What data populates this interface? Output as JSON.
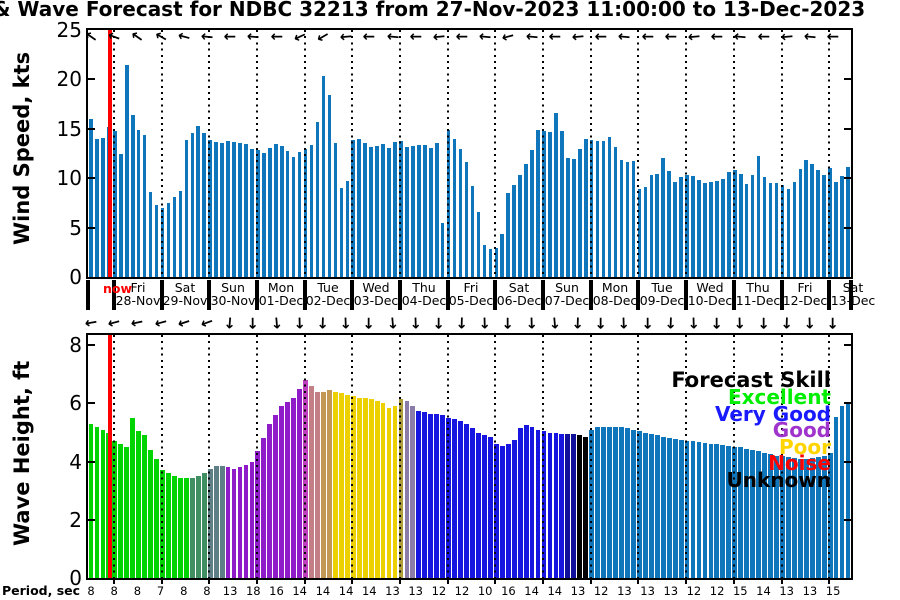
{
  "title": "& Wave Forecast for NDBC 32213 from 27-Nov-2023 11:00:00 to 13-Dec-2023",
  "now_label": "now",
  "colors": {
    "now_line": "#ff0000",
    "wind_bar": "#0f76bc",
    "axis": "#000000"
  },
  "days": [
    {
      "dow": "Fri",
      "date": "28-Nov"
    },
    {
      "dow": "Sat",
      "date": "29-Nov"
    },
    {
      "dow": "Sun",
      "date": "30-Nov"
    },
    {
      "dow": "Mon",
      "date": "01-Dec"
    },
    {
      "dow": "Tue",
      "date": "02-Dec"
    },
    {
      "dow": "Wed",
      "date": "03-Dec"
    },
    {
      "dow": "Thu",
      "date": "04-Dec"
    },
    {
      "dow": "Fri",
      "date": "05-Dec"
    },
    {
      "dow": "Sat",
      "date": "06-Dec"
    },
    {
      "dow": "Sun",
      "date": "07-Dec"
    },
    {
      "dow": "Mon",
      "date": "08-Dec"
    },
    {
      "dow": "Tue",
      "date": "09-Dec"
    },
    {
      "dow": "Wed",
      "date": "10-Dec"
    },
    {
      "dow": "Thu",
      "date": "11-Dec"
    },
    {
      "dow": "Fri",
      "date": "12-Dec"
    },
    {
      "dow": "Sat",
      "date": "13-Dec"
    }
  ],
  "period": {
    "label": "Period, sec",
    "values": [
      "8",
      "8",
      "8",
      "7",
      "8",
      "8",
      "13",
      "18",
      "16",
      "14",
      "14",
      "14",
      "14",
      "13",
      "13",
      "12",
      "12",
      "10",
      "16",
      "14",
      "14",
      "13",
      "12",
      "13",
      "13",
      "13",
      "12",
      "12",
      "15",
      "14",
      "13",
      "13",
      "15"
    ]
  },
  "chart_data": [
    {
      "type": "bar",
      "id": "wind",
      "ylabel": "Wind Speed, kts",
      "ylim": [
        0,
        25
      ],
      "yticks": [
        0,
        5,
        10,
        15,
        20,
        25
      ],
      "bar_color": "#0f76bc",
      "x_range": "27-Nov-2023 to 13-Dec-2023, 3-hourly",
      "values": [
        16.0,
        14.0,
        14.1,
        15.2,
        14.8,
        12.5,
        21.5,
        16.4,
        14.9,
        14.4,
        8.6,
        7.3,
        7.0,
        7.5,
        8.1,
        8.7,
        13.9,
        14.6,
        15.3,
        14.6,
        13.9,
        13.7,
        13.6,
        13.8,
        13.7,
        13.6,
        13.5,
        13.0,
        12.9,
        12.6,
        13.1,
        13.5,
        13.3,
        12.8,
        12.2,
        12.7,
        13.0,
        13.4,
        15.7,
        20.3,
        18.4,
        13.6,
        9.0,
        9.7,
        13.9,
        14.0,
        13.6,
        13.2,
        13.3,
        13.5,
        13.1,
        13.7,
        13.8,
        13.2,
        13.3,
        13.4,
        13.4,
        13.1,
        13.6,
        5.5,
        14.9,
        14.0,
        13.0,
        11.6,
        9.2,
        6.6,
        3.2,
        2.8,
        2.9,
        4.4,
        8.5,
        9.3,
        10.3,
        11.4,
        12.9,
        14.9,
        14.8,
        14.7,
        16.6,
        14.8,
        12.0,
        11.9,
        13.0,
        14.0,
        13.9,
        13.8,
        13.8,
        14.2,
        13.2,
        11.8,
        11.6,
        11.7,
        8.9,
        9.1,
        10.3,
        10.4,
        12.0,
        10.7,
        9.6,
        10.1,
        10.3,
        10.2,
        9.8,
        9.5,
        9.6,
        9.7,
        9.9,
        10.6,
        10.8,
        10.4,
        9.4,
        10.3,
        12.3,
        10.1,
        9.5,
        9.5,
        9.3,
        8.9,
        9.6,
        10.9,
        11.8,
        11.4,
        10.8,
        10.3,
        11.0,
        9.6,
        10.2,
        11.1
      ],
      "arrow_rotations_deg": [
        215,
        200,
        215,
        210,
        195,
        185,
        180,
        185,
        180,
        155,
        150,
        175,
        180,
        185,
        180,
        175,
        180,
        185,
        165,
        185,
        180,
        175,
        180,
        185,
        180,
        180,
        175,
        180,
        185,
        180,
        175,
        185,
        180
      ]
    },
    {
      "type": "bar",
      "id": "wave",
      "ylabel": "Wave Height, ft",
      "ylim": [
        0,
        8.35
      ],
      "yticks": [
        0,
        2,
        4,
        6,
        8
      ],
      "x_range": "27-Nov-2023 to 13-Dec-2023, 3-hourly",
      "values": [
        5.3,
        5.2,
        5.1,
        5.0,
        4.7,
        4.6,
        4.5,
        5.5,
        5.05,
        4.9,
        4.4,
        4.1,
        3.7,
        3.6,
        3.5,
        3.45,
        3.45,
        3.45,
        3.5,
        3.6,
        3.75,
        3.85,
        3.85,
        3.8,
        3.75,
        3.8,
        3.9,
        4.0,
        4.35,
        4.8,
        5.3,
        5.6,
        5.9,
        6.05,
        6.2,
        6.5,
        6.8,
        6.6,
        6.4,
        6.4,
        6.45,
        6.4,
        6.35,
        6.3,
        6.25,
        6.2,
        6.2,
        6.15,
        6.1,
        6.0,
        5.85,
        5.9,
        6.15,
        6.1,
        5.9,
        5.75,
        5.7,
        5.65,
        5.65,
        5.6,
        5.5,
        5.45,
        5.4,
        5.3,
        5.15,
        5.0,
        4.9,
        4.85,
        4.6,
        4.55,
        4.6,
        4.75,
        5.15,
        5.25,
        5.2,
        5.1,
        5.05,
        5.0,
        5.0,
        4.95,
        4.95,
        4.95,
        4.9,
        4.85,
        5.1,
        5.2,
        5.2,
        5.2,
        5.2,
        5.2,
        5.15,
        5.1,
        5.05,
        5.0,
        4.95,
        4.9,
        4.85,
        4.8,
        4.78,
        4.75,
        4.72,
        4.7,
        4.68,
        4.65,
        4.62,
        4.6,
        4.58,
        4.55,
        4.52,
        4.5,
        4.45,
        4.4,
        4.35,
        4.3,
        4.25,
        4.2,
        4.18,
        4.15,
        4.12,
        4.1,
        4.1,
        4.12,
        4.15,
        4.2,
        4.3,
        5.55,
        5.9,
        6.05
      ],
      "skill_runs": [
        [
          "excellent",
          17
        ],
        [
          "teal",
          3
        ],
        [
          "slate",
          3
        ],
        [
          "good",
          13
        ],
        [
          "magenta",
          1
        ],
        [
          "pink",
          2
        ],
        [
          "tan",
          2
        ],
        [
          "poor",
          11
        ],
        [
          "olive",
          1
        ],
        [
          "mauve",
          2
        ],
        [
          "verygood",
          25
        ],
        [
          "navy",
          2
        ],
        [
          "unknown",
          2
        ],
        [
          "obs",
          44
        ]
      ],
      "skill_colors": {
        "excellent": "#00d400",
        "teal": "#3f8f62",
        "slate": "#5d7f85",
        "good": "#8f1bc9",
        "magenta": "#bf3fbf",
        "pink": "#c47f86",
        "tan": "#c39754",
        "poor": "#ecd000",
        "olive": "#ad9c38",
        "mauve": "#8b7ba8",
        "verygood": "#1616e0",
        "navy": "#10109a",
        "unknown": "#000000",
        "obs": "#0f76bc"
      },
      "arrow_rotations_deg": [
        170,
        165,
        168,
        165,
        162,
        160,
        95,
        90,
        85,
        88,
        92,
        88,
        90,
        85,
        88,
        90,
        92,
        88,
        90,
        88,
        85,
        92,
        90,
        88,
        90,
        92,
        88,
        90,
        88,
        90,
        92,
        88,
        90
      ],
      "legend": {
        "title": "Forecast Skill",
        "entries": [
          {
            "label": "Excellent",
            "color": "#00ee00"
          },
          {
            "label": "Very Good",
            "color": "#1a1aff"
          },
          {
            "label": "Good",
            "color": "#a033cc"
          },
          {
            "label": "Poor",
            "color": "#ffd400"
          },
          {
            "label": "Noise",
            "color": "#ff0000"
          },
          {
            "label": "Unknown",
            "color": "#000000"
          }
        ]
      }
    }
  ]
}
